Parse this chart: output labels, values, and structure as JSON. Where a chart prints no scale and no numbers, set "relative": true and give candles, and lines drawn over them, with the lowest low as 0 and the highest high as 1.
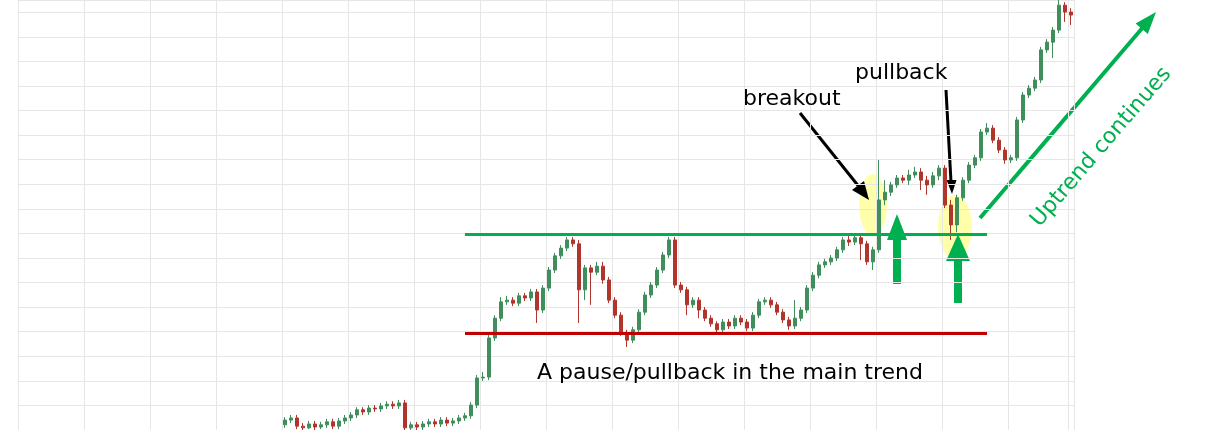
{
  "chart_data": {
    "type": "candlestick",
    "relative": true,
    "grid": true,
    "tick_labels": false,
    "categories": [
      null,
      null,
      null,
      null,
      null,
      null,
      null,
      null,
      null,
      null,
      null,
      null,
      null,
      null,
      null,
      null,
      null,
      null,
      null,
      null,
      null,
      null,
      null,
      null,
      null,
      null,
      null,
      null,
      null,
      null,
      null,
      null,
      null,
      null,
      null,
      null,
      null,
      null,
      null,
      null,
      null,
      null,
      null,
      null,
      null,
      null,
      null,
      null,
      null,
      null,
      null,
      null,
      null,
      null,
      null,
      null,
      null,
      null,
      null,
      null,
      null,
      null,
      null,
      null,
      null,
      null,
      null,
      null,
      null,
      null,
      null,
      null,
      null,
      null,
      null,
      null,
      null,
      null,
      null,
      null,
      null,
      null,
      null,
      null,
      null,
      null,
      null,
      null,
      null,
      null,
      null,
      null,
      null,
      null,
      null,
      null,
      null,
      null,
      null,
      null,
      null,
      null,
      null,
      null,
      null,
      null,
      null,
      null,
      null,
      null,
      null,
      null,
      null,
      null,
      null,
      null,
      null,
      null,
      null,
      null,
      null,
      null,
      null,
      null,
      null,
      null,
      null,
      null,
      null,
      null,
      null,
      null,
      null,
      null,
      null,
      null,
      null,
      null,
      null,
      null,
      null,
      null,
      null,
      null,
      null,
      null,
      null,
      null,
      null,
      null,
      null,
      null,
      null,
      null,
      null,
      null,
      null,
      null,
      null,
      null,
      null,
      null,
      null,
      null,
      null,
      null,
      null,
      null,
      null,
      null,
      null,
      null,
      null,
      null,
      null,
      null
    ],
    "ohlc": [
      null,
      null,
      null,
      null,
      null,
      null,
      null,
      null,
      null,
      null,
      null,
      null,
      null,
      null,
      null,
      null,
      null,
      null,
      null,
      null,
      null,
      null,
      null,
      null,
      null,
      null,
      null,
      null,
      null,
      null,
      null,
      null,
      null,
      null,
      null,
      null,
      null,
      null,
      null,
      null,
      null,
      null,
      null,
      null,
      [
        0.012,
        0.03,
        0.005,
        0.023
      ],
      [
        0.023,
        0.035,
        0.016,
        0.028
      ],
      [
        0.028,
        0.035,
        0.002,
        0.009
      ],
      [
        0.009,
        0.016,
        0,
        0.005
      ],
      [
        0.005,
        0.021,
        0.002,
        0.014
      ],
      [
        0.014,
        0.021,
        0,
        0.007
      ],
      [
        0.007,
        0.019,
        0.002,
        0.012
      ],
      [
        0.012,
        0.026,
        0.005,
        0.019
      ],
      [
        0.019,
        0.026,
        0.002,
        0.009
      ],
      [
        0.009,
        0.028,
        0.002,
        0.021
      ],
      [
        0.021,
        0.035,
        0.014,
        0.028
      ],
      [
        0.028,
        0.042,
        0.021,
        0.035
      ],
      [
        0.035,
        0.053,
        0.028,
        0.047
      ],
      [
        0.047,
        0.053,
        0.035,
        0.042
      ],
      [
        0.042,
        0.058,
        0.035,
        0.051
      ],
      [
        0.051,
        0.058,
        0.042,
        0.049
      ],
      [
        0.049,
        0.063,
        0.042,
        0.056
      ],
      [
        0.056,
        0.067,
        0.049,
        0.06
      ],
      [
        0.06,
        0.067,
        0.049,
        0.056
      ],
      [
        0.056,
        0.07,
        0.049,
        0.063
      ],
      [
        0.063,
        0.07,
        0,
        0.005
      ],
      [
        0.005,
        0.019,
        0,
        0.012
      ],
      [
        0.012,
        0.019,
        0,
        0.007
      ],
      [
        0.007,
        0.021,
        0,
        0.014
      ],
      [
        0.014,
        0.026,
        0.007,
        0.019
      ],
      [
        0.019,
        0.026,
        0.007,
        0.014
      ],
      [
        0.014,
        0.03,
        0.007,
        0.023
      ],
      [
        0.023,
        0.03,
        0.009,
        0.016
      ],
      [
        0.016,
        0.028,
        0.009,
        0.021
      ],
      [
        0.021,
        0.035,
        0.014,
        0.028
      ],
      [
        0.028,
        0.04,
        0.021,
        0.033
      ],
      [
        0.033,
        0.065,
        0.026,
        0.058
      ],
      [
        0.058,
        0.128,
        0.051,
        0.121
      ],
      [
        0.121,
        0.135,
        0.114,
        0.123
      ],
      [
        0.123,
        0.221,
        0.116,
        0.214
      ],
      [
        0.214,
        0.267,
        0.207,
        0.26
      ],
      [
        0.26,
        0.309,
        0.253,
        0.298
      ],
      [
        0.298,
        0.312,
        0.291,
        0.302
      ],
      [
        0.302,
        0.309,
        0.288,
        0.295
      ],
      [
        0.295,
        0.319,
        0.288,
        0.312
      ],
      [
        0.312,
        0.319,
        0.3,
        0.307
      ],
      [
        0.307,
        0.328,
        0.3,
        0.321
      ],
      [
        0.321,
        0.328,
        0.249,
        0.279
      ],
      [
        0.279,
        0.337,
        0.272,
        0.33
      ],
      [
        0.33,
        0.379,
        0.323,
        0.372
      ],
      [
        0.372,
        0.412,
        0.365,
        0.405
      ],
      [
        0.405,
        0.43,
        0.398,
        0.423
      ],
      [
        0.423,
        0.449,
        0.416,
        0.442
      ],
      [
        0.442,
        0.449,
        0.426,
        0.433
      ],
      [
        0.433,
        0.442,
        0.249,
        0.326
      ],
      [
        0.326,
        0.384,
        0.302,
        0.377
      ],
      [
        0.377,
        0.384,
        0.291,
        0.367
      ],
      [
        0.367,
        0.391,
        0.36,
        0.381
      ],
      [
        0.381,
        0.391,
        0.34,
        0.349
      ],
      [
        0.349,
        0.356,
        0.295,
        0.302
      ],
      [
        0.302,
        0.309,
        0.26,
        0.267
      ],
      [
        0.267,
        0.274,
        0.219,
        0.226
      ],
      [
        0.226,
        0.233,
        0.193,
        0.209
      ],
      [
        0.209,
        0.24,
        0.202,
        0.233
      ],
      [
        0.233,
        0.281,
        0.226,
        0.274
      ],
      [
        0.274,
        0.321,
        0.267,
        0.314
      ],
      [
        0.314,
        0.344,
        0.307,
        0.337
      ],
      [
        0.337,
        0.379,
        0.33,
        0.372
      ],
      [
        0.372,
        0.414,
        0.365,
        0.407
      ],
      [
        0.407,
        0.449,
        0.4,
        0.442
      ],
      [
        0.442,
        0.449,
        0.33,
        0.337
      ],
      [
        0.337,
        0.344,
        0.319,
        0.326
      ],
      [
        0.326,
        0.333,
        0.267,
        0.291
      ],
      [
        0.291,
        0.309,
        0.284,
        0.302
      ],
      [
        0.302,
        0.309,
        0.26,
        0.279
      ],
      [
        0.279,
        0.286,
        0.253,
        0.26
      ],
      [
        0.26,
        0.267,
        0.24,
        0.247
      ],
      [
        0.247,
        0.253,
        0.226,
        0.233
      ],
      [
        0.233,
        0.258,
        0.226,
        0.251
      ],
      [
        0.251,
        0.258,
        0.235,
        0.242
      ],
      [
        0.242,
        0.267,
        0.235,
        0.26
      ],
      [
        0.26,
        0.267,
        0.244,
        0.251
      ],
      [
        0.251,
        0.258,
        0.23,
        0.237
      ],
      [
        0.237,
        0.274,
        0.23,
        0.267
      ],
      [
        0.267,
        0.305,
        0.26,
        0.298
      ],
      [
        0.298,
        0.309,
        0.291,
        0.302
      ],
      [
        0.302,
        0.309,
        0.284,
        0.291
      ],
      [
        0.291,
        0.298,
        0.267,
        0.274
      ],
      [
        0.274,
        0.281,
        0.249,
        0.256
      ],
      [
        0.256,
        0.263,
        0.233,
        0.242
      ],
      [
        0.242,
        0.302,
        0.235,
        0.26
      ],
      [
        0.26,
        0.286,
        0.253,
        0.279
      ],
      [
        0.279,
        0.337,
        0.272,
        0.33
      ],
      [
        0.33,
        0.367,
        0.323,
        0.36
      ],
      [
        0.36,
        0.391,
        0.353,
        0.384
      ],
      [
        0.384,
        0.398,
        0.377,
        0.391
      ],
      [
        0.391,
        0.407,
        0.384,
        0.4
      ],
      [
        0.4,
        0.426,
        0.393,
        0.419
      ],
      [
        0.419,
        0.449,
        0.412,
        0.442
      ],
      [
        0.442,
        0.451,
        0.428,
        0.437
      ],
      [
        0.437,
        0.453,
        0.43,
        0.447
      ],
      [
        0.447,
        0.453,
        0.395,
        0.433
      ],
      [
        0.433,
        0.44,
        0.384,
        0.391
      ],
      [
        0.391,
        0.426,
        0.372,
        0.419
      ],
      [
        0.419,
        0.628,
        0.412,
        0.535
      ],
      [
        0.535,
        0.581,
        0.523,
        0.553
      ],
      [
        0.553,
        0.577,
        0.544,
        0.57
      ],
      [
        0.57,
        0.593,
        0.563,
        0.586
      ],
      [
        0.586,
        0.593,
        0.574,
        0.581
      ],
      [
        0.581,
        0.605,
        0.57,
        0.593
      ],
      [
        0.593,
        0.612,
        0.586,
        0.6
      ],
      [
        0.6,
        0.609,
        0.558,
        0.581
      ],
      [
        0.581,
        0.591,
        0.547,
        0.57
      ],
      [
        0.57,
        0.6,
        0.563,
        0.591
      ],
      [
        0.591,
        0.616,
        0.581,
        0.609
      ],
      [
        0.609,
        0.616,
        0.516,
        0.523
      ],
      [
        0.523,
        0.535,
        0.442,
        0.477
      ],
      [
        0.477,
        0.547,
        0.46,
        0.54
      ],
      [
        0.54,
        0.588,
        0.533,
        0.581
      ],
      [
        0.581,
        0.623,
        0.574,
        0.616
      ],
      [
        0.616,
        0.64,
        0.609,
        0.633
      ],
      [
        0.633,
        0.7,
        0.626,
        0.693
      ],
      [
        0.693,
        0.714,
        0.686,
        0.702
      ],
      [
        0.702,
        0.709,
        0.667,
        0.674
      ],
      [
        0.674,
        0.681,
        0.644,
        0.651
      ],
      [
        0.651,
        0.658,
        0.619,
        0.628
      ],
      [
        0.628,
        0.64,
        0.621,
        0.633
      ],
      [
        0.633,
        0.728,
        0.626,
        0.721
      ],
      [
        0.721,
        0.786,
        0.714,
        0.779
      ],
      [
        0.779,
        0.802,
        0.772,
        0.795
      ],
      [
        0.795,
        0.821,
        0.788,
        0.814
      ],
      [
        0.814,
        0.891,
        0.807,
        0.884
      ],
      [
        0.884,
        0.909,
        0.877,
        0.902
      ],
      [
        0.902,
        0.937,
        0.865,
        0.93
      ],
      [
        0.93,
        1,
        0.923,
        0.988
      ],
      [
        0.988,
        0.995,
        0.949,
        0.972
      ],
      [
        0.972,
        0.981,
        0.942,
        0.965
      ]
    ],
    "ref_lines": [
      {
        "axis": "y",
        "value": 0.456,
        "color": "#00b050"
      },
      {
        "axis": "y",
        "value": 0.226,
        "color": "#c00000"
      }
    ],
    "annotations": [
      "breakout",
      "pullback",
      "A pause/pullback in the main trend",
      "Uptrend continues"
    ]
  }
}
